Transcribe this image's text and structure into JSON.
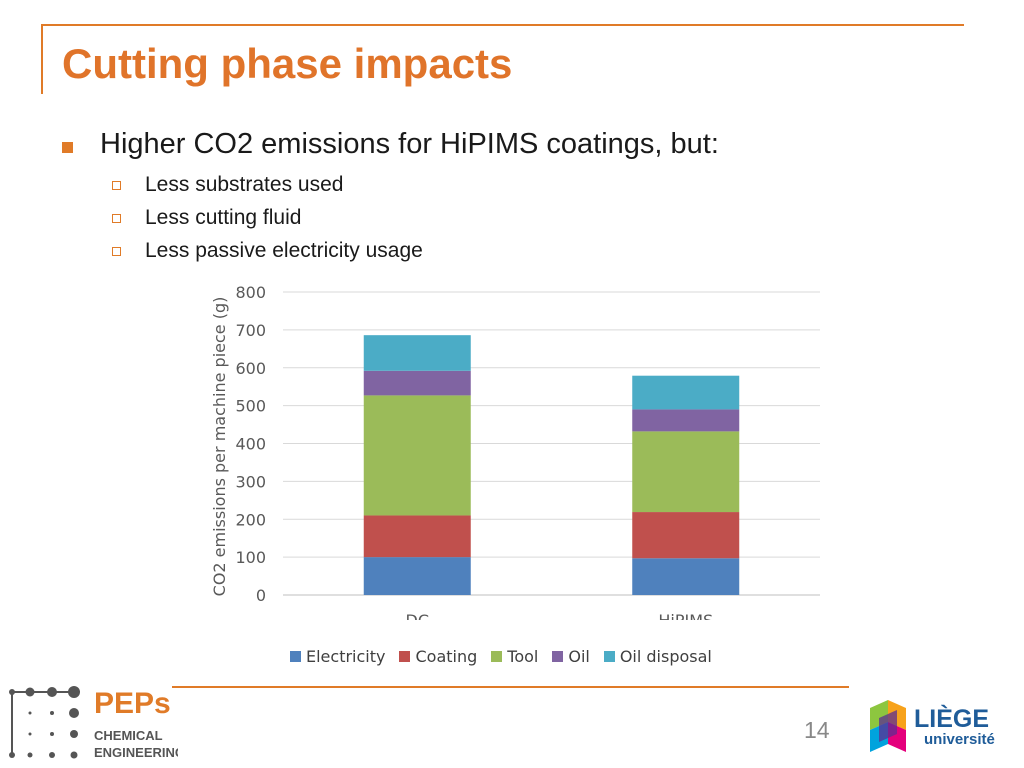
{
  "slide": {
    "title": "Cutting phase impacts",
    "bullet": "Higher CO2 emissions for HiPIMS coatings, but:",
    "sub_bullets": [
      "Less substrates used",
      "Less cutting fluid",
      "Less passive electricity usage"
    ],
    "page_number": "14",
    "accent_color": "#e07b28"
  },
  "logos": {
    "peps_name": "PEPs",
    "peps_line1": "CHEMICAL",
    "peps_line2": "ENGINEERING",
    "liege_name": "LIÈGE",
    "liege_sub": "université"
  },
  "chart_data": {
    "type": "bar",
    "stacked": true,
    "categories": [
      "DC",
      "HiPIMS"
    ],
    "ylabel": "CO2 emissions per machine piece (g)",
    "xlabel": "",
    "ylim": [
      0,
      800
    ],
    "yticks": [
      0,
      100,
      200,
      300,
      400,
      500,
      600,
      700,
      800
    ],
    "grid": true,
    "legend_position": "bottom",
    "series": [
      {
        "name": "Electricity",
        "color": "#4f81bd",
        "values": [
          100,
          97
        ]
      },
      {
        "name": "Coating",
        "color": "#c0504d",
        "values": [
          110,
          122
        ]
      },
      {
        "name": "Tool",
        "color": "#9bbb59",
        "values": [
          317,
          213
        ]
      },
      {
        "name": "Oil",
        "color": "#8064a2",
        "values": [
          65,
          58
        ]
      },
      {
        "name": "Oil disposal",
        "color": "#4bacc6",
        "values": [
          94,
          89
        ]
      }
    ]
  }
}
